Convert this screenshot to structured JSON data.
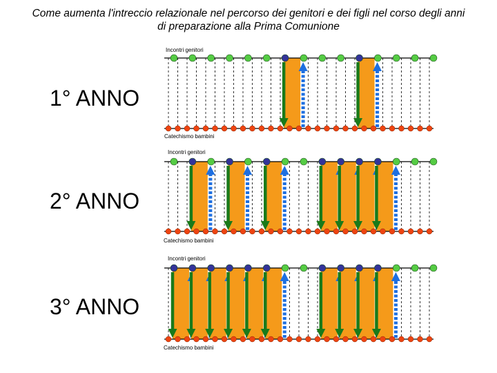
{
  "title": "Come aumenta l'intreccio relazionale nel percorso dei genitori e dei figli nel corso degli anni di preparazione alla Prima Comunione",
  "colors": {
    "top_dot_parent": "#55cc44",
    "top_dot_joint": "#333399",
    "bottom_dot": "#ee4411",
    "band": "#f59a1a",
    "down_arrow": "#1a7a1a",
    "up_arrow": "#1e6fe0",
    "rail": "#000000",
    "grid": "#000000"
  },
  "panels": [
    {
      "label": "1° ANNO",
      "top_label": "Incontri genitori",
      "bottom_label": "Catechismo bambini",
      "joint_meetings": [
        6,
        10
      ]
    },
    {
      "label": "2° ANNO",
      "top_label": "Incontri genitori",
      "bottom_label": "Catechismo bambini",
      "joint_meetings": [
        1,
        3,
        5,
        8,
        9,
        10,
        11
      ]
    },
    {
      "label": "3° ANNO",
      "top_label": "Incontri genitori",
      "bottom_label": "Catechismo bambini",
      "joint_meetings": [
        0,
        1,
        2,
        3,
        4,
        5,
        8,
        9,
        10,
        11
      ]
    }
  ]
}
